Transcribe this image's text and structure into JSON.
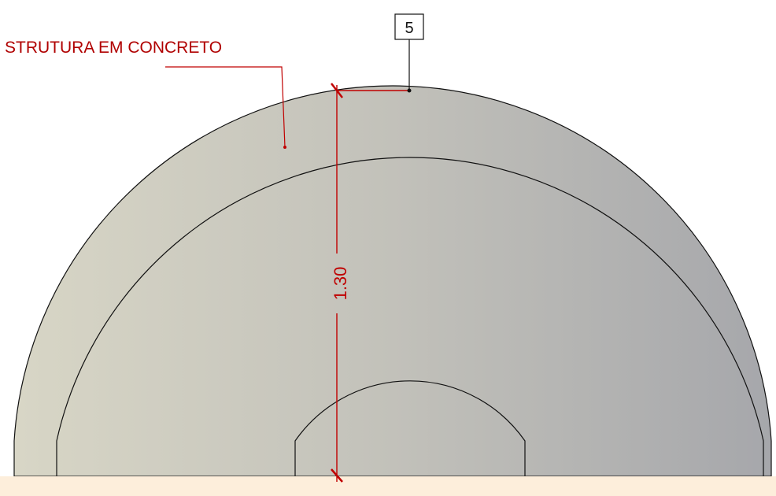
{
  "label": "STRUTURA EM CONCRETO",
  "tag": "5",
  "dimension": "1.30"
}
